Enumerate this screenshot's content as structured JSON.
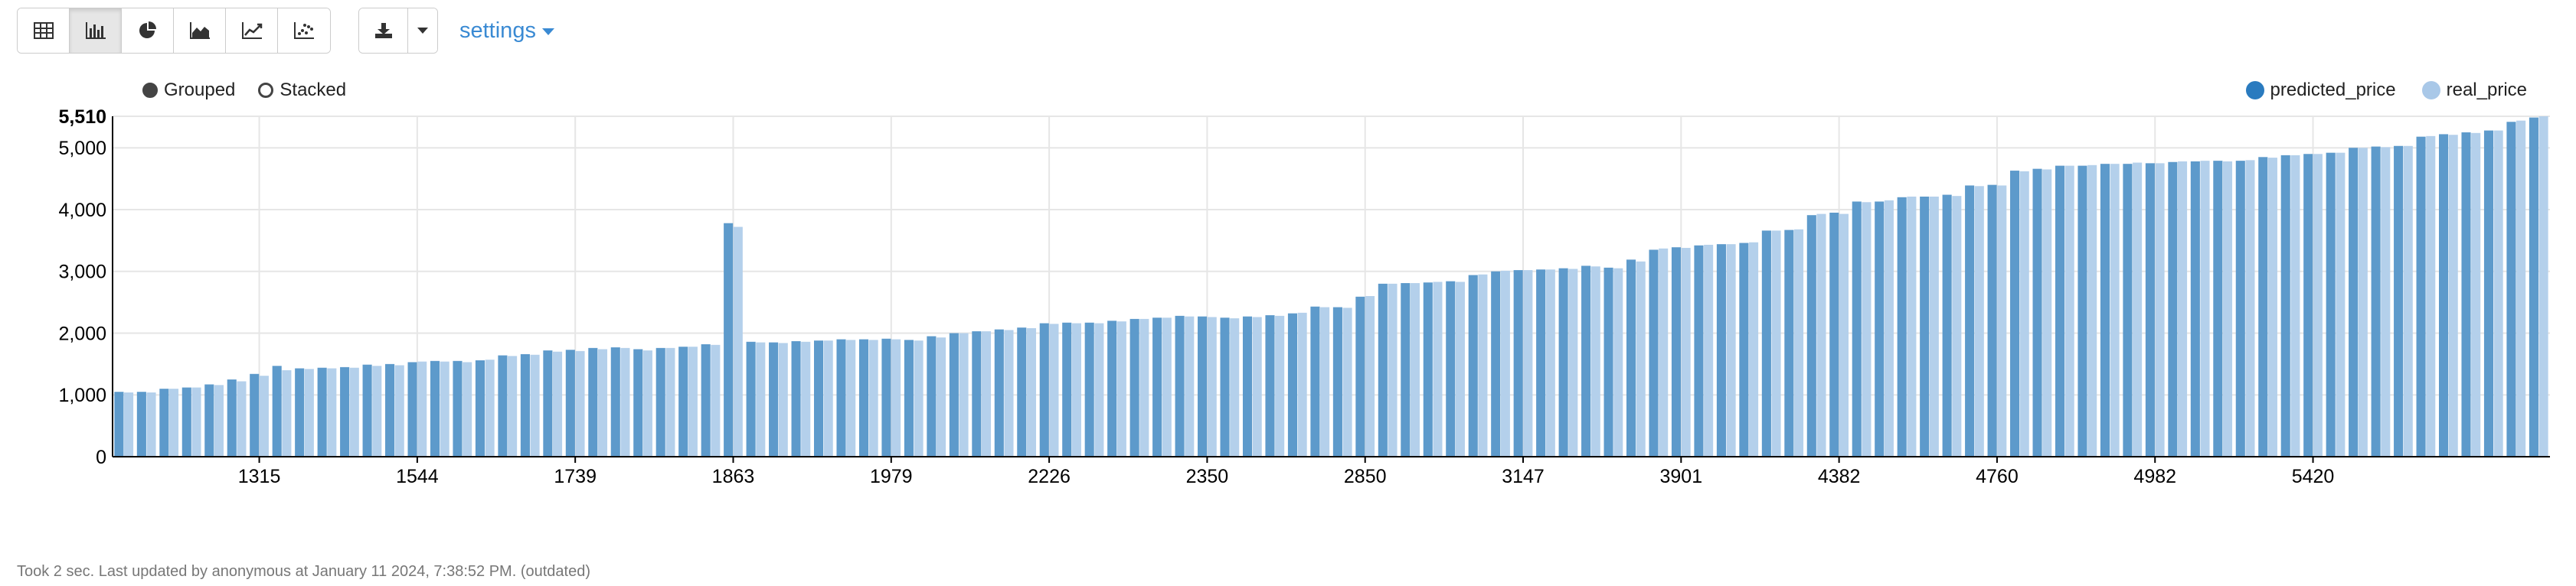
{
  "toolbar": {
    "view_buttons": [
      {
        "icon": "table-icon",
        "active": false
      },
      {
        "icon": "bar-chart-icon",
        "active": true
      },
      {
        "icon": "pie-chart-icon",
        "active": false
      },
      {
        "icon": "area-chart-icon",
        "active": false
      },
      {
        "icon": "line-chart-icon",
        "active": false
      },
      {
        "icon": "scatter-chart-icon",
        "active": false
      }
    ],
    "download_icon": "download-icon",
    "dropdown_icon": "caret-down-icon",
    "settings_label": "settings"
  },
  "modes": {
    "grouped": "Grouped",
    "stacked": "Stacked",
    "selected": "grouped"
  },
  "legend": [
    {
      "name": "predicted_price",
      "color": "#2a7bbf"
    },
    {
      "name": "real_price",
      "color": "#a9c8e8"
    }
  ],
  "footer": "Took 2 sec. Last updated by anonymous at January 11 2024, 7:38:52 PM. (outdated)",
  "colors": {
    "predicted": "#5d9acb",
    "real": "#b4d0eb",
    "grid": "#e6e6e6",
    "axis": "#000000"
  },
  "chart_data": {
    "type": "bar",
    "mode": "grouped",
    "ylim": [
      0,
      5510
    ],
    "ytick_labels": [
      "0",
      "1,000",
      "2,000",
      "3,000",
      "4,000",
      "5,000",
      "5,510"
    ],
    "ytick_values": [
      0,
      1000,
      2000,
      3000,
      4000,
      5000,
      5510
    ],
    "xtick_labels": [
      "1315",
      "1544",
      "1739",
      "1863",
      "1979",
      "2226",
      "2350",
      "2850",
      "3147",
      "3901",
      "4382",
      "4760",
      "4982",
      "5420"
    ],
    "xtick_category_index": [
      6,
      13,
      20,
      27,
      34,
      41,
      48,
      55,
      62,
      69,
      76,
      83,
      90,
      97
    ],
    "grid": true,
    "legend_position": "top-right",
    "series": [
      {
        "name": "predicted_price",
        "values": [
          1050,
          1050,
          1100,
          1120,
          1170,
          1250,
          1340,
          1470,
          1430,
          1440,
          1450,
          1490,
          1500,
          1530,
          1550,
          1550,
          1560,
          1640,
          1660,
          1720,
          1730,
          1760,
          1770,
          1740,
          1760,
          1780,
          1820,
          3780,
          1860,
          1850,
          1870,
          1880,
          1900,
          1900,
          1910,
          1890,
          1950,
          2000,
          2030,
          2060,
          2090,
          2160,
          2170,
          2170,
          2200,
          2230,
          2250,
          2280,
          2270,
          2250,
          2270,
          2290,
          2320,
          2430,
          2420,
          2590,
          2800,
          2810,
          2820,
          2840,
          2940,
          3000,
          3020,
          3030,
          3050,
          3090,
          3060,
          3190,
          3350,
          3390,
          3420,
          3440,
          3460,
          3660,
          3670,
          3910,
          3950,
          4130,
          4130,
          4200,
          4210,
          4240,
          4390,
          4400,
          4630,
          4660,
          4710,
          4710,
          4740,
          4740,
          4750,
          4770,
          4780,
          4790,
          4790,
          4850,
          4880,
          4900,
          4920,
          5000,
          5020,
          5030,
          5180,
          5220,
          5250,
          5280,
          5420,
          5490
        ]
      },
      {
        "name": "real_price",
        "values": [
          1040,
          1040,
          1100,
          1120,
          1160,
          1220,
          1310,
          1400,
          1420,
          1430,
          1440,
          1470,
          1480,
          1540,
          1540,
          1530,
          1570,
          1630,
          1650,
          1700,
          1710,
          1740,
          1760,
          1720,
          1760,
          1780,
          1810,
          3720,
          1850,
          1840,
          1860,
          1880,
          1890,
          1890,
          1900,
          1880,
          1930,
          2000,
          2030,
          2050,
          2080,
          2150,
          2160,
          2160,
          2190,
          2230,
          2250,
          2270,
          2260,
          2240,
          2260,
          2280,
          2330,
          2420,
          2410,
          2600,
          2800,
          2810,
          2830,
          2830,
          2950,
          3010,
          3020,
          3030,
          3040,
          3080,
          3050,
          3160,
          3370,
          3380,
          3430,
          3440,
          3470,
          3660,
          3680,
          3930,
          3930,
          4120,
          4150,
          4210,
          4210,
          4220,
          4380,
          4390,
          4620,
          4650,
          4710,
          4720,
          4740,
          4760,
          4750,
          4780,
          4790,
          4780,
          4800,
          4840,
          4880,
          4900,
          4920,
          5000,
          5010,
          5030,
          5190,
          5210,
          5240,
          5280,
          5440,
          5510
        ]
      }
    ]
  }
}
